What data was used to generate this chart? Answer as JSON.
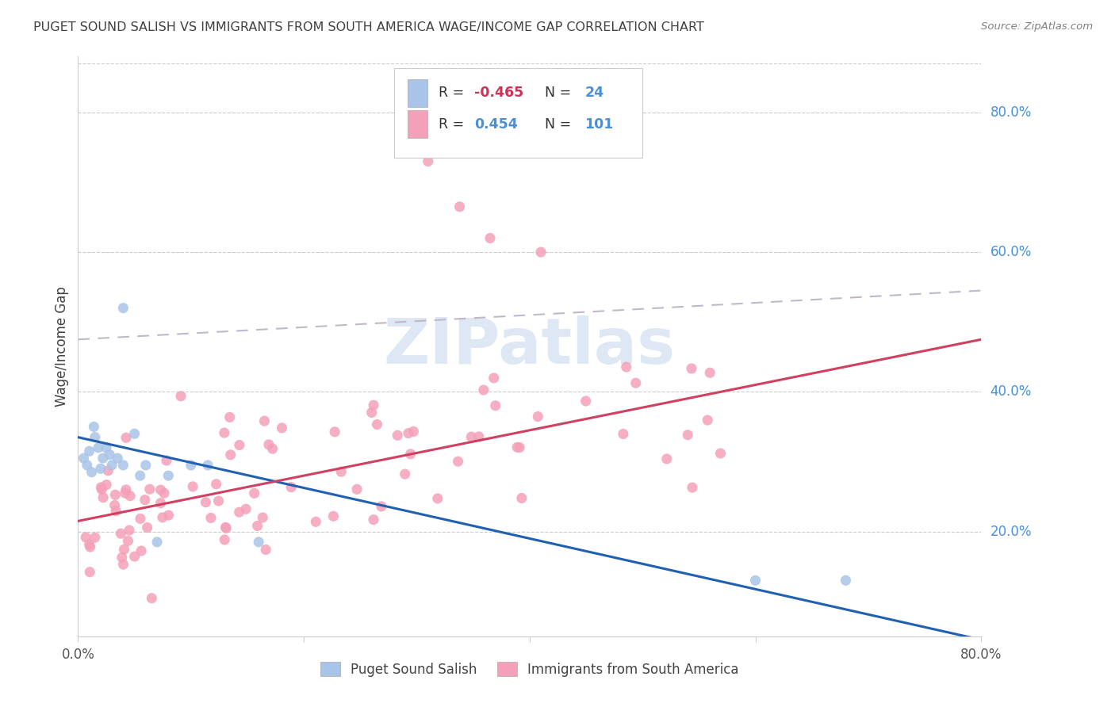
{
  "title": "PUGET SOUND SALISH VS IMMIGRANTS FROM SOUTH AMERICA WAGE/INCOME GAP CORRELATION CHART",
  "source": "Source: ZipAtlas.com",
  "ylabel": "Wage/Income Gap",
  "xlim": [
    0.0,
    0.8
  ],
  "ylim": [
    0.05,
    0.88
  ],
  "x_ticks": [
    0.0,
    0.2,
    0.4,
    0.6,
    0.8
  ],
  "x_tick_labels": [
    "0.0%",
    "",
    "",
    "",
    "80.0%"
  ],
  "y_tick_labels_right": [
    "20.0%",
    "40.0%",
    "60.0%",
    "80.0%"
  ],
  "y_ticks_right": [
    0.2,
    0.4,
    0.6,
    0.8
  ],
  "blue_R": -0.465,
  "blue_N": 24,
  "pink_R": 0.454,
  "pink_N": 101,
  "blue_scatter_color": "#a8c4e8",
  "pink_scatter_color": "#f4a0b8",
  "blue_line_color": "#2060b0",
  "pink_line_color": "#d04060",
  "gray_dash_color": "#c0b8c8",
  "watermark_text": "ZIPatlas",
  "watermark_color": "#c8d8ee",
  "legend_label_blue": "Puget Sound Salish",
  "legend_label_pink": "Immigrants from South America",
  "title_color": "#404040",
  "source_color": "#808080",
  "axis_label_color": "#404040",
  "right_label_color": "#4a90d9",
  "grid_color": "#cccccc",
  "blue_line_y0": 0.335,
  "blue_line_y1": 0.045,
  "pink_line_y0": 0.215,
  "pink_line_y1": 0.475,
  "gray_line_y0": 0.475,
  "gray_line_y1": 0.545
}
